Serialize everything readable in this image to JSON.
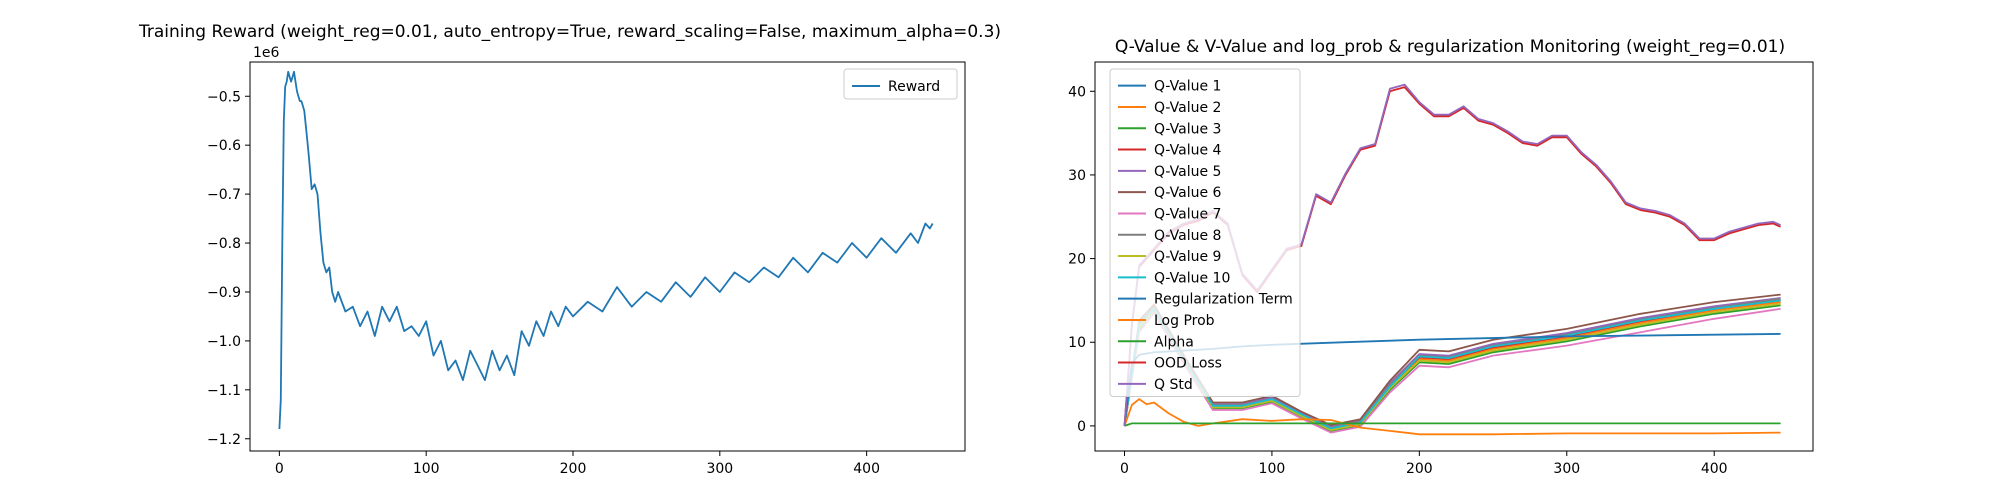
{
  "chart_data": [
    {
      "type": "line",
      "title": "Training Reward (weight_reg=0.01, auto_entropy=True, reward_scaling=False, maximum_alpha=0.3)",
      "xlabel": "",
      "ylabel": "",
      "y_offset_text": "1e6",
      "y_multiplier": 1000000,
      "xlim": [
        -20,
        467
      ],
      "ylim": [
        -1.225,
        -0.43
      ],
      "xticks": [
        0,
        100,
        200,
        300,
        400
      ],
      "yticks": [
        -1.2,
        -1.1,
        -1.0,
        -0.9,
        -0.8,
        -0.7,
        -0.6,
        -0.5
      ],
      "ytick_labels": [
        "−1.2",
        "−1.1",
        "−1.0",
        "−0.9",
        "−0.8",
        "−0.7",
        "−0.6",
        "−0.5"
      ],
      "grid": false,
      "legend_position": "upper right",
      "series": [
        {
          "name": "Reward",
          "color": "#1f77b4",
          "x": [
            0,
            1,
            2,
            3,
            4,
            5,
            6,
            7,
            8,
            9,
            10,
            11,
            12,
            13,
            14,
            15,
            16,
            17,
            18,
            19,
            20,
            22,
            24,
            26,
            28,
            30,
            32,
            34,
            36,
            38,
            40,
            45,
            50,
            55,
            60,
            65,
            70,
            75,
            80,
            85,
            90,
            95,
            100,
            105,
            110,
            115,
            120,
            125,
            130,
            135,
            140,
            145,
            150,
            155,
            160,
            165,
            170,
            175,
            180,
            185,
            190,
            195,
            200,
            210,
            220,
            230,
            240,
            250,
            260,
            270,
            280,
            290,
            300,
            310,
            320,
            330,
            340,
            350,
            360,
            370,
            380,
            390,
            400,
            410,
            420,
            430,
            435,
            440,
            443,
            445
          ],
          "values": [
            -1.18,
            -1.12,
            -0.8,
            -0.55,
            -0.48,
            -0.47,
            -0.45,
            -0.46,
            -0.47,
            -0.46,
            -0.45,
            -0.47,
            -0.49,
            -0.5,
            -0.51,
            -0.51,
            -0.52,
            -0.53,
            -0.56,
            -0.59,
            -0.62,
            -0.69,
            -0.68,
            -0.7,
            -0.78,
            -0.84,
            -0.86,
            -0.85,
            -0.9,
            -0.92,
            -0.9,
            -0.94,
            -0.93,
            -0.97,
            -0.94,
            -0.99,
            -0.93,
            -0.96,
            -0.93,
            -0.98,
            -0.97,
            -0.99,
            -0.96,
            -1.03,
            -1.0,
            -1.06,
            -1.04,
            -1.08,
            -1.02,
            -1.05,
            -1.08,
            -1.02,
            -1.06,
            -1.03,
            -1.07,
            -0.98,
            -1.01,
            -0.96,
            -0.99,
            -0.94,
            -0.97,
            -0.93,
            -0.95,
            -0.92,
            -0.94,
            -0.89,
            -0.93,
            -0.9,
            -0.92,
            -0.88,
            -0.91,
            -0.87,
            -0.9,
            -0.86,
            -0.88,
            -0.85,
            -0.87,
            -0.83,
            -0.86,
            -0.82,
            -0.84,
            -0.8,
            -0.83,
            -0.79,
            -0.82,
            -0.78,
            -0.8,
            -0.76,
            -0.77,
            -0.76
          ]
        }
      ]
    },
    {
      "type": "line",
      "title": "Q-Value & V-Value and log_prob & regularization Monitoring (weight_reg=0.01)",
      "xlabel": "",
      "ylabel": "",
      "xlim": [
        -20,
        467
      ],
      "ylim": [
        -3,
        43.5
      ],
      "xticks": [
        0,
        100,
        200,
        300,
        400
      ],
      "yticks": [
        0,
        10,
        20,
        30,
        40
      ],
      "grid": false,
      "legend_position": "upper left",
      "series": [
        {
          "name": "Q-Value 1",
          "color": "#1f77b4",
          "x": [
            0,
            10,
            20,
            40,
            60,
            80,
            100,
            120,
            140,
            160,
            180,
            200,
            220,
            250,
            300,
            350,
            400,
            445
          ],
          "values": [
            0,
            12,
            14,
            8,
            2.5,
            2.5,
            3.5,
            1.5,
            -0.2,
            0.5,
            5,
            8.5,
            8.3,
            9.7,
            11,
            12.8,
            14.2,
            15.1
          ]
        },
        {
          "name": "Q-Value 2",
          "color": "#ff7f0e",
          "x": [
            0,
            10,
            20,
            40,
            60,
            80,
            100,
            120,
            140,
            160,
            180,
            200,
            220,
            250,
            300,
            350,
            400,
            445
          ],
          "values": [
            0,
            12,
            14,
            8,
            2.3,
            2.3,
            3.1,
            1.3,
            -0.4,
            0.3,
            4.6,
            8,
            7.8,
            9.2,
            10.5,
            12.3,
            13.8,
            14.8
          ]
        },
        {
          "name": "Q-Value 3",
          "color": "#2ca02c",
          "x": [
            0,
            10,
            20,
            40,
            60,
            80,
            100,
            120,
            140,
            160,
            180,
            200,
            220,
            250,
            300,
            350,
            400,
            445
          ],
          "values": [
            0,
            11.5,
            13.8,
            7.8,
            2.1,
            2.1,
            2.9,
            1.1,
            -0.6,
            0.1,
            4.3,
            7.6,
            7.4,
            8.8,
            10.1,
            11.9,
            13.4,
            14.4
          ]
        },
        {
          "name": "Q-Value 4",
          "color": "#d62728",
          "x": [
            0,
            10,
            20,
            40,
            60,
            80,
            100,
            120,
            140,
            160,
            180,
            200,
            220,
            250,
            300,
            350,
            400,
            445
          ],
          "values": [
            0,
            12.2,
            14.2,
            8.2,
            2.4,
            2.4,
            3.3,
            1.4,
            -0.3,
            0.4,
            4.8,
            8.2,
            8,
            9.4,
            10.7,
            12.5,
            14,
            15
          ]
        },
        {
          "name": "Q-Value 5",
          "color": "#9467bd",
          "x": [
            0,
            10,
            20,
            40,
            60,
            80,
            100,
            120,
            140,
            160,
            180,
            200,
            220,
            250,
            300,
            350,
            400,
            445
          ],
          "values": [
            0,
            12.4,
            14.3,
            8.3,
            2.6,
            2.6,
            3.4,
            1.5,
            -0.1,
            0.6,
            5.1,
            8.6,
            8.4,
            9.8,
            11.1,
            12.9,
            14.3,
            15.3
          ]
        },
        {
          "name": "Q-Value 6",
          "color": "#8c564b",
          "x": [
            0,
            10,
            20,
            40,
            60,
            80,
            100,
            120,
            140,
            160,
            180,
            200,
            220,
            250,
            300,
            350,
            400,
            445
          ],
          "values": [
            0,
            12.6,
            14.5,
            8.5,
            2.8,
            2.8,
            3.6,
            1.7,
            0.1,
            0.8,
            5.4,
            9.1,
            8.9,
            10.3,
            11.6,
            13.4,
            14.8,
            15.7
          ]
        },
        {
          "name": "Q-Value 7",
          "color": "#e377c2",
          "x": [
            0,
            10,
            20,
            40,
            60,
            80,
            100,
            120,
            140,
            160,
            180,
            200,
            220,
            250,
            300,
            350,
            400,
            445
          ],
          "values": [
            0,
            11.2,
            13.5,
            7.5,
            1.9,
            1.9,
            2.7,
            0.9,
            -0.8,
            -0.1,
            4,
            7.2,
            7,
            8.4,
            9.6,
            11.2,
            12.8,
            14
          ]
        },
        {
          "name": "Q-Value 8",
          "color": "#7f7f7f",
          "x": [
            0,
            10,
            20,
            40,
            60,
            80,
            100,
            120,
            140,
            160,
            180,
            200,
            220,
            250,
            300,
            350,
            400,
            445
          ],
          "values": [
            0,
            12.3,
            14.1,
            8.1,
            2.5,
            2.5,
            3.2,
            1.3,
            -0.2,
            0.5,
            4.9,
            8.4,
            8.2,
            9.6,
            10.9,
            12.7,
            14.1,
            15.2
          ]
        },
        {
          "name": "Q-Value 9",
          "color": "#bcbd22",
          "x": [
            0,
            10,
            20,
            40,
            60,
            80,
            100,
            120,
            140,
            160,
            180,
            200,
            220,
            250,
            300,
            350,
            400,
            445
          ],
          "values": [
            0,
            11.8,
            13.9,
            7.9,
            2.2,
            2.2,
            3,
            1.2,
            -0.5,
            0.2,
            4.5,
            7.8,
            7.6,
            9,
            10.3,
            12.1,
            13.6,
            14.6
          ]
        },
        {
          "name": "Q-Value 10",
          "color": "#17becf",
          "x": [
            0,
            10,
            20,
            40,
            60,
            80,
            100,
            120,
            140,
            160,
            180,
            200,
            220,
            250,
            300,
            350,
            400,
            445
          ],
          "values": [
            0,
            12.1,
            14,
            8,
            2.4,
            2.4,
            3.2,
            1.4,
            -0.3,
            0.4,
            4.7,
            8.3,
            8.1,
            9.5,
            10.8,
            12.6,
            14,
            15
          ]
        },
        {
          "name": "Regularization Term",
          "color": "#1f77b4",
          "x": [
            0,
            5,
            10,
            20,
            40,
            60,
            80,
            100,
            150,
            200,
            300,
            400,
            445
          ],
          "values": [
            0,
            7.5,
            8.5,
            8.8,
            9,
            9.2,
            9.5,
            9.7,
            10,
            10.3,
            10.7,
            10.9,
            11
          ]
        },
        {
          "name": "Log Prob",
          "color": "#ff7f0e",
          "x": [
            0,
            5,
            10,
            15,
            20,
            30,
            40,
            50,
            60,
            80,
            100,
            120,
            140,
            160,
            180,
            200,
            250,
            300,
            350,
            400,
            445
          ],
          "values": [
            0,
            2.5,
            3.2,
            2.6,
            2.8,
            1.5,
            0.5,
            0,
            0.3,
            0.8,
            0.6,
            0.8,
            0.7,
            -0.2,
            -0.6,
            -1,
            -1,
            -0.9,
            -0.9,
            -0.9,
            -0.8
          ]
        },
        {
          "name": "Alpha",
          "color": "#2ca02c",
          "x": [
            0,
            5,
            100,
            200,
            300,
            400,
            445
          ],
          "values": [
            0,
            0.3,
            0.3,
            0.3,
            0.3,
            0.3,
            0.3
          ]
        },
        {
          "name": "OOD Loss",
          "color": "#d62728",
          "x": [
            0,
            5,
            10,
            20,
            30,
            40,
            50,
            60,
            70,
            80,
            90,
            100,
            110,
            120,
            130,
            140,
            150,
            160,
            170,
            180,
            190,
            200,
            210,
            220,
            230,
            240,
            250,
            260,
            270,
            280,
            290,
            300,
            310,
            320,
            330,
            340,
            350,
            360,
            370,
            380,
            390,
            400,
            410,
            420,
            430,
            440,
            445
          ],
          "values": [
            0,
            12,
            19,
            21,
            23,
            24,
            24.5,
            25.5,
            24,
            18,
            16,
            18.5,
            21,
            21.5,
            27.5,
            26.5,
            30,
            33,
            33.5,
            40,
            40.5,
            38.5,
            37,
            37,
            38,
            36.5,
            36,
            35,
            33.8,
            33.5,
            34.5,
            34.5,
            32.5,
            31,
            29,
            26.5,
            25.8,
            25.5,
            25,
            24,
            22.2,
            22.2,
            23,
            23.5,
            24,
            24.2,
            23.8
          ]
        },
        {
          "name": "Q Std",
          "color": "#9467bd",
          "x": [
            0,
            5,
            10,
            20,
            30,
            40,
            50,
            60,
            70,
            80,
            90,
            100,
            110,
            120,
            130,
            140,
            150,
            160,
            170,
            180,
            190,
            200,
            210,
            220,
            230,
            240,
            250,
            260,
            270,
            280,
            290,
            300,
            310,
            320,
            330,
            340,
            350,
            360,
            370,
            380,
            390,
            400,
            410,
            420,
            430,
            440,
            445
          ],
          "values": [
            0,
            12.2,
            19.2,
            21.2,
            23.2,
            24.2,
            24.7,
            25.7,
            24.2,
            18.2,
            16.2,
            18.7,
            21.2,
            21.7,
            27.7,
            26.7,
            30.2,
            33.2,
            33.7,
            40.3,
            40.8,
            38.7,
            37.2,
            37.2,
            38.2,
            36.7,
            36.2,
            35.2,
            34,
            33.7,
            34.7,
            34.7,
            32.7,
            31.2,
            29.2,
            26.7,
            26,
            25.7,
            25.2,
            24.2,
            22.4,
            22.4,
            23.2,
            23.7,
            24.2,
            24.4,
            24
          ]
        }
      ]
    }
  ]
}
